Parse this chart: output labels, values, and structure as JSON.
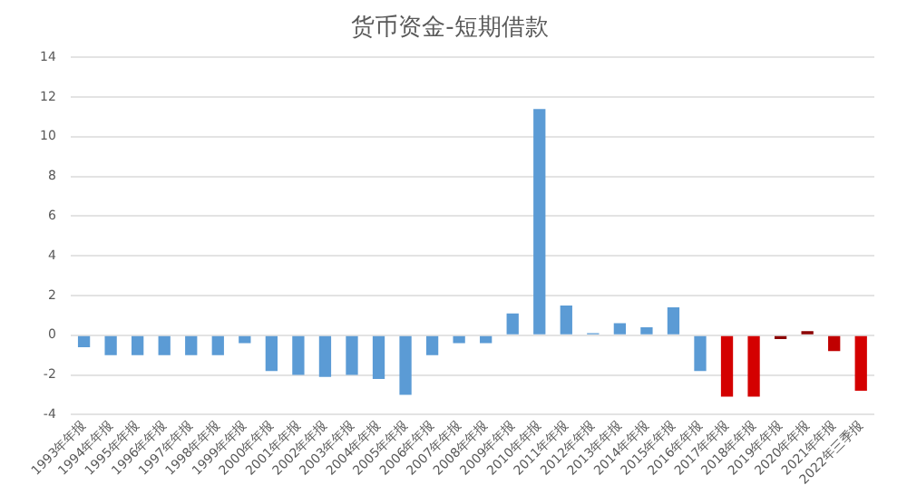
{
  "chart_data": {
    "type": "bar",
    "title": "货币资金-短期借款",
    "categories": [
      "1993年年报",
      "1994年年报",
      "1995年年报",
      "1996年年报",
      "1997年年报",
      "1998年年报",
      "1999年年报",
      "2000年年报",
      "2001年年报",
      "2002年年报",
      "2003年年报",
      "2004年年报",
      "2005年年报",
      "2006年年报",
      "2007年年报",
      "2008年年报",
      "2009年年报",
      "2010年年报",
      "2011年年报",
      "2012年年报",
      "2013年年报",
      "2014年年报",
      "2015年年报",
      "2016年年报",
      "2017年年报",
      "2018年年报",
      "2019年年报",
      "2020年年报",
      "2021年年报",
      "2022年三季报"
    ],
    "values": [
      -0.6,
      -1.0,
      -1.0,
      -1.0,
      -1.0,
      -1.0,
      -0.4,
      -1.8,
      -2.0,
      -2.1,
      -2.0,
      -2.2,
      -3.0,
      -1.0,
      -0.4,
      -0.4,
      1.1,
      11.4,
      1.5,
      0.1,
      0.6,
      0.4,
      1.4,
      -1.8,
      -3.1,
      -3.1,
      -0.2,
      0.2,
      -0.8,
      -2.8
    ],
    "colors": [
      "#5b9bd5",
      "#5b9bd5",
      "#5b9bd5",
      "#5b9bd5",
      "#5b9bd5",
      "#5b9bd5",
      "#5b9bd5",
      "#5b9bd5",
      "#5b9bd5",
      "#5b9bd5",
      "#5b9bd5",
      "#5b9bd5",
      "#5b9bd5",
      "#5b9bd5",
      "#5b9bd5",
      "#5b9bd5",
      "#5b9bd5",
      "#5b9bd5",
      "#5b9bd5",
      "#5b9bd5",
      "#5b9bd5",
      "#5b9bd5",
      "#5b9bd5",
      "#5b9bd5",
      "#d40000",
      "#d40000",
      "#8b0000",
      "#8b0000",
      "#c00000",
      "#d40000"
    ],
    "ylim": [
      -4,
      14
    ],
    "yticks": [
      -4,
      -2,
      0,
      2,
      4,
      6,
      8,
      10,
      12,
      14
    ],
    "grid": "y",
    "legend": false
  }
}
